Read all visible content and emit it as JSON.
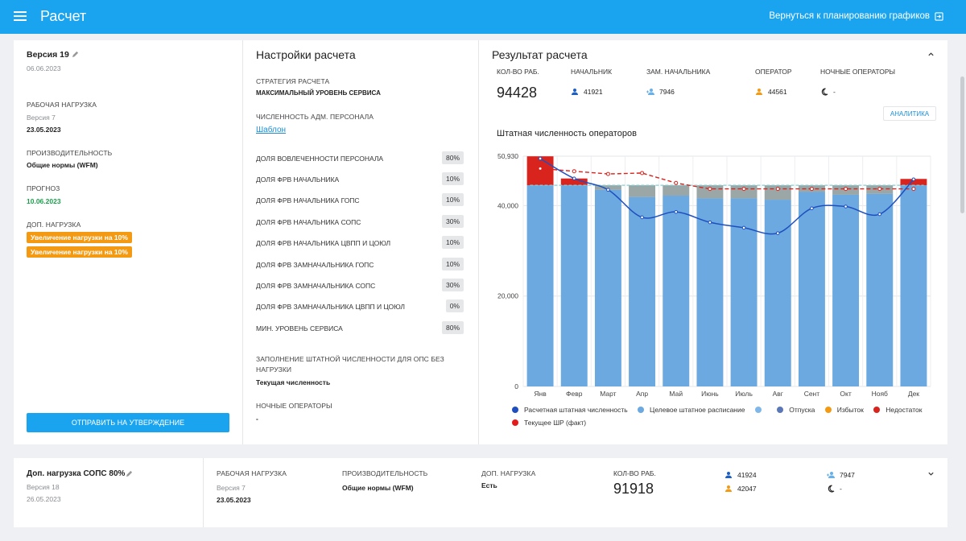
{
  "header": {
    "title": "Расчет",
    "back_link": "Вернуться к планированию графиков"
  },
  "version_card": {
    "title": "Версия 19",
    "date": "06.06.2023",
    "workload_label": "РАБОЧАЯ НАГРУЗКА",
    "workload_version": "Версия 7",
    "workload_date": "23.05.2023",
    "productivity_label": "ПРОИЗВОДИТЕЛЬНОСТЬ",
    "productivity_value": "Общие нормы (WFM)",
    "forecast_label": "ПРОГНОЗ",
    "forecast_date": "10.06.2023",
    "extra_load_label": "ДОП. НАГРУЗКА",
    "extra_load_badges": [
      "Увеличение нагрузки на 10%",
      "Увеличение нагрузки на 10%"
    ],
    "submit_button": "ОТПРАВИТЬ НА УТВЕРЖДЕНИЕ"
  },
  "settings": {
    "title": "Настройки расчета",
    "strategy_label": "СТРАТЕГИЯ РАСЧЕТА",
    "strategy_value": "МАКСИМАЛЬНЫЙ УРОВЕНЬ СЕРВИСА",
    "admin_staff_label": "ЧИСЛЕННОСТЬ АДМ. ПЕРСОНАЛА",
    "admin_staff_link": "Шаблон",
    "rows": [
      {
        "label": "ДОЛЯ ВОВЛЕЧЕННОСТИ ПЕРСОНАЛА",
        "value": "80%"
      },
      {
        "label": "ДОЛЯ ФРВ НАЧАЛЬНИКА",
        "value": "10%"
      },
      {
        "label": "ДОЛЯ ФРВ НАЧАЛЬНИКА ГОПС",
        "value": "10%"
      },
      {
        "label": "ДОЛЯ ФРВ НАЧАЛЬНИКА СОПС",
        "value": "30%"
      },
      {
        "label": "ДОЛЯ ФРВ НАЧАЛЬНИКА ЦВПП И ЦОЮЛ",
        "value": "10%"
      },
      {
        "label": "ДОЛЯ ФРВ ЗАМНАЧАЛЬНИКА ГОПС",
        "value": "10%"
      },
      {
        "label": "ДОЛЯ ФРВ ЗАМНАЧАЛЬНИКА СОПС",
        "value": "30%"
      },
      {
        "label": "ДОЛЯ ФРВ ЗАМНАЧАЛЬНИКА ЦВПП И ЦОЮЛ",
        "value": "0%"
      },
      {
        "label": "МИН. УРОВЕНЬ СЕРВИСА",
        "value": "80%"
      }
    ],
    "fill_label": "ЗАПОЛНЕНИЕ ШТАТНОЙ ЧИСЛЕННОСТИ ДЛЯ ОПС БЕЗ НАГРУЗКИ",
    "fill_value": "Текущая численность",
    "night_label": "НОЧНЫЕ ОПЕРАТОРЫ",
    "night_value": "-"
  },
  "result": {
    "title": "Результат расчета",
    "workers_label": "КОЛ-ВО РАБ.",
    "workers_value": "94428",
    "chief_label": "НАЧАЛЬНИК",
    "chief_value": "41921",
    "deputy_label": "ЗАМ. НАЧАЛЬНИКА",
    "deputy_value": "7946",
    "operator_label": "ОПЕРАТОР",
    "operator_value": "44561",
    "night_label": "НОЧНЫЕ ОПЕРАТОРЫ",
    "night_value": "-",
    "analytics_button": "АНАЛИТИКА",
    "chart_title": "Штатная численность операторов"
  },
  "colors": {
    "primary": "#1aa4ef",
    "badge_orange": "#f39a12",
    "forecast_green": "#18a04a",
    "line_blue": "#1f4fbf",
    "target_bar": "#6ba9e0",
    "vacation": "#9aa7a6",
    "shortage": "#d9231d",
    "current_red": "#d9231d"
  },
  "chart_data": {
    "type": "bar",
    "title": "Штатная численность операторов",
    "categories": [
      "Янв",
      "Февр",
      "Март",
      "Апр",
      "Май",
      "Июнь",
      "Июль",
      "Авг",
      "Сент",
      "Окт",
      "Нояб",
      "Дек"
    ],
    "ylim": [
      0,
      50930
    ],
    "yticks": [
      0,
      20000,
      40000,
      50930
    ],
    "ytick_labels": [
      "0",
      "20,000",
      "40,000",
      "50,930"
    ],
    "series": [
      {
        "name": "Расчетная штатная численность",
        "kind": "line",
        "color": "#1f4fbf",
        "values": [
          50400,
          46000,
          43500,
          37400,
          38600,
          36300,
          35100,
          33900,
          39400,
          39800,
          38100,
          45800
        ]
      },
      {
        "name": "Целевое штатное расписание",
        "kind": "bar",
        "color": "#6ba9e0",
        "values": [
          44500,
          44500,
          43500,
          41900,
          42200,
          41600,
          41600,
          41300,
          43000,
          42400,
          42600,
          44500
        ]
      },
      {
        "name": "",
        "kind": "bar",
        "color": "#7fb8e8",
        "values": [
          0,
          0,
          0,
          0,
          0,
          0,
          0,
          0,
          0,
          0,
          0,
          0
        ]
      },
      {
        "name": "Отпуска",
        "kind": "bar",
        "color": "#9aa7a6",
        "values": [
          0,
          0,
          1000,
          2600,
          2300,
          2900,
          2900,
          3200,
          1500,
          2100,
          1900,
          0
        ]
      },
      {
        "name": "Избыток",
        "kind": "bar",
        "color": "#f39a12",
        "values": [
          0,
          0,
          0,
          0,
          0,
          0,
          0,
          0,
          0,
          0,
          0,
          0
        ]
      },
      {
        "name": "Недостаток",
        "kind": "bar",
        "color": "#d9231d",
        "values": [
          6400,
          1500,
          0,
          0,
          0,
          0,
          0,
          0,
          0,
          0,
          0,
          1400
        ]
      },
      {
        "name": "Текущее ШР (факт)",
        "kind": "line",
        "color": "#d9231d",
        "values": [
          48200,
          47600,
          47000,
          47200,
          45000,
          43700,
          43700,
          43700,
          43700,
          43700,
          43700,
          43700
        ]
      }
    ],
    "target_line": 44500
  },
  "legend": {
    "items": [
      {
        "label": "Расчетная штатная численность",
        "color": "#1f4fbf"
      },
      {
        "label": "Целевое штатное расписание",
        "color": "#6ba9e0"
      },
      {
        "label": "",
        "color": "#7fb8e8"
      },
      {
        "label": "Отпуска",
        "color": "#5a78b8"
      },
      {
        "label": "Избыток",
        "color": "#f39a12"
      },
      {
        "label": "Недостаток",
        "color": "#d9231d"
      },
      {
        "label": "Текущее ШР (факт)",
        "color": "#e41b1b"
      }
    ]
  },
  "version_card2": {
    "title": "Доп. нагрузка СОПС 80%",
    "version": "Версия 18",
    "date": "26.05.2023",
    "workload_label": "РАБОЧАЯ НАГРУЗКА",
    "workload_version": "Версия 7",
    "workload_date": "23.05.2023",
    "productivity_label": "ПРОИЗВОДИТЕЛЬНОСТЬ",
    "productivity_value": "Общие нормы (WFM)",
    "extra_load_label": "ДОП. НАГРУЗКА",
    "extra_load_value": "Есть",
    "workers_label": "КОЛ-ВО РАБ.",
    "workers_value": "91918",
    "chief_value": "41924",
    "operator_value": "42047",
    "deputy_value": "7947",
    "night_value": "-"
  }
}
